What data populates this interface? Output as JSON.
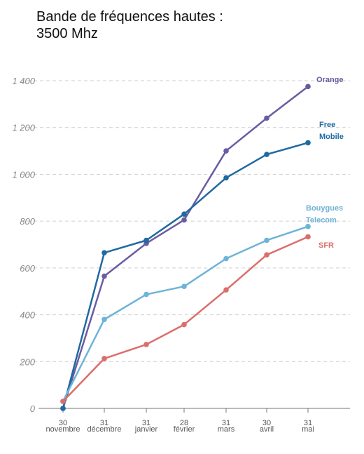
{
  "chart_data": {
    "type": "line",
    "title": "Bande de fréquences hautes :\n3500 Mhz",
    "xlabel": "",
    "ylabel": "",
    "ylim": [
      0,
      1400
    ],
    "yticks": [
      0,
      200,
      400,
      600,
      800,
      1000,
      1200,
      1400
    ],
    "ytick_labels": [
      "0",
      "200",
      "400",
      "600",
      "800",
      "1 000",
      "1 200",
      "1 400"
    ],
    "grid": true,
    "categories": [
      {
        "day": "30",
        "month": "novembre"
      },
      {
        "day": "31",
        "month": "décembre"
      },
      {
        "day": "31",
        "month": "janvier"
      },
      {
        "day": "28",
        "month": "février"
      },
      {
        "day": "31",
        "month": "mars"
      },
      {
        "day": "30",
        "month": "avril"
      },
      {
        "day": "31",
        "month": "mai"
      }
    ],
    "series": [
      {
        "name": "Orange",
        "label_lines": [
          "Orange"
        ],
        "color": "#6b5ba3",
        "values": [
          0,
          565,
          705,
          805,
          1100,
          1240,
          1375
        ]
      },
      {
        "name": "Free Mobile",
        "label_lines": [
          "Free",
          "Mobile"
        ],
        "color": "#1f6aa0",
        "values": [
          0,
          665,
          718,
          830,
          985,
          1085,
          1135
        ]
      },
      {
        "name": "Bouygues Telecom",
        "label_lines": [
          "Bouygues",
          "Telecom"
        ],
        "color": "#6fb3d8",
        "values": [
          30,
          380,
          487,
          521,
          640,
          718,
          777
        ]
      },
      {
        "name": "SFR",
        "label_lines": [
          "SFR"
        ],
        "color": "#db6e6c",
        "values": [
          30,
          213,
          273,
          358,
          506,
          656,
          733
        ]
      }
    ]
  }
}
